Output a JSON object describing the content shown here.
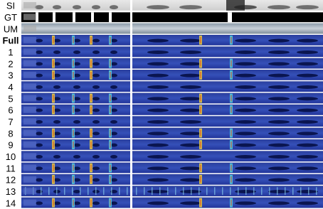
{
  "rows": [
    {
      "label": "SI"
    },
    {
      "label": "GT"
    },
    {
      "label": "UM"
    },
    {
      "label": "Full"
    },
    {
      "label": "1"
    },
    {
      "label": "2"
    },
    {
      "label": "3"
    },
    {
      "label": "4"
    },
    {
      "label": "5"
    },
    {
      "label": "6"
    },
    {
      "label": "7"
    },
    {
      "label": "8"
    },
    {
      "label": "9"
    },
    {
      "label": "10"
    },
    {
      "label": "11"
    },
    {
      "label": "12"
    },
    {
      "label": "13"
    },
    {
      "label": "14"
    }
  ]
}
